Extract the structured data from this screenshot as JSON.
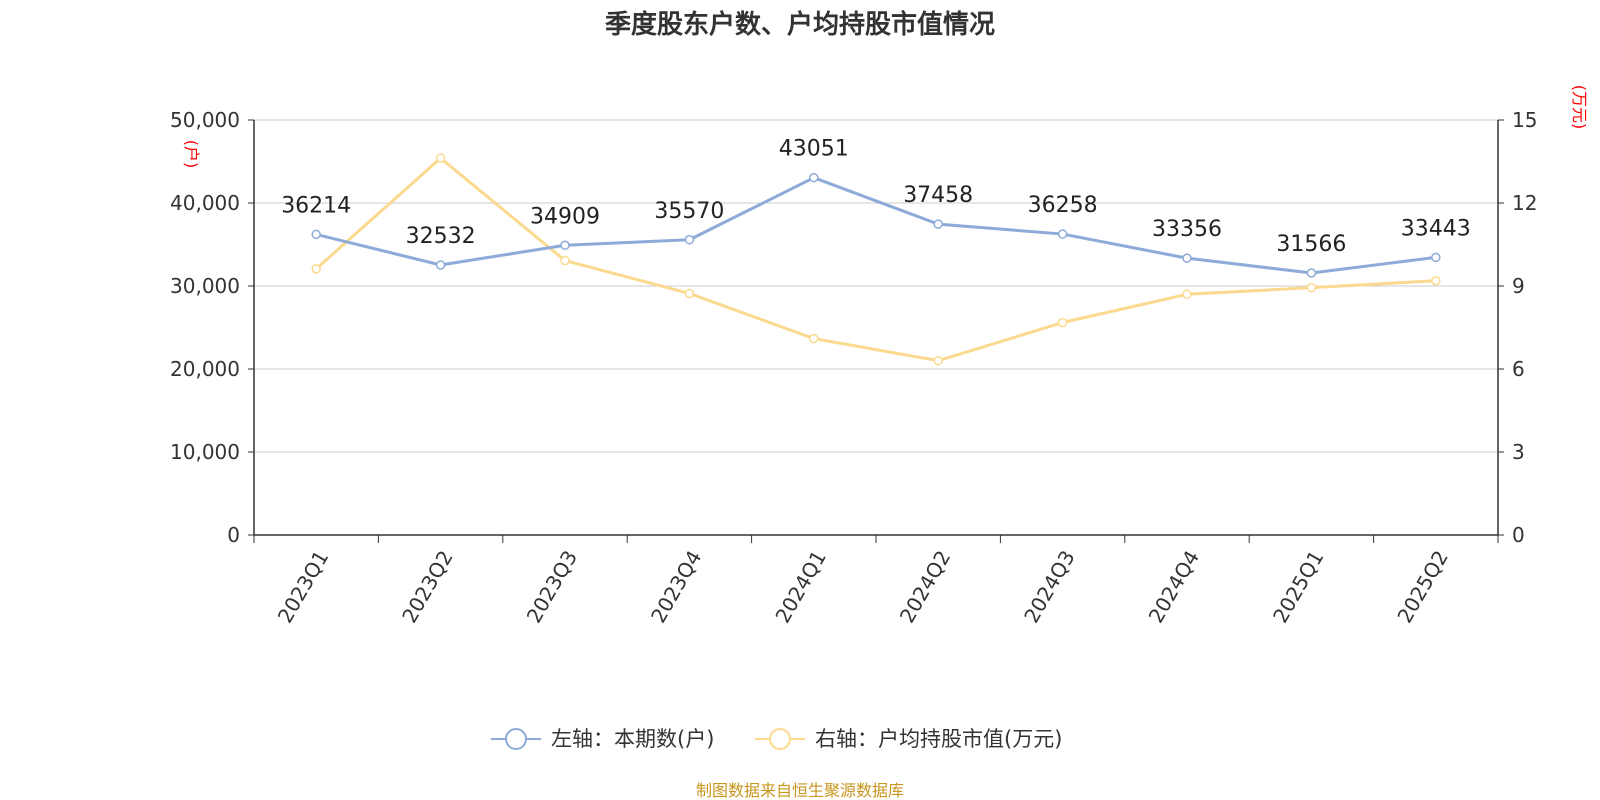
{
  "chart_data": {
    "type": "line",
    "title": "季度股东户数、户均持股市值情况",
    "categories": [
      "2023Q1",
      "2023Q2",
      "2023Q3",
      "2023Q4",
      "2024Q1",
      "2024Q2",
      "2024Q3",
      "2024Q4",
      "2025Q1",
      "2025Q2"
    ],
    "left_axis": {
      "unit": "(户)",
      "ylim": [
        0,
        50000
      ],
      "ticks": [
        0,
        10000,
        20000,
        30000,
        40000,
        50000
      ],
      "tick_labels": [
        "0",
        "10,000",
        "20,000",
        "30,000",
        "40,000",
        "50,000"
      ]
    },
    "right_axis": {
      "unit": "(万元)",
      "ylim": [
        0,
        15
      ],
      "ticks": [
        0,
        3,
        6,
        9,
        12,
        15
      ],
      "tick_labels": [
        "0",
        "3",
        "6",
        "9",
        "12",
        "15"
      ]
    },
    "series": [
      {
        "name": "左轴：本期数(户)",
        "axis": "left",
        "color": "#8eaad8",
        "values": [
          36214,
          32532,
          34909,
          35570,
          43051,
          37458,
          36258,
          33356,
          31566,
          33443
        ],
        "labels": [
          "36214",
          "32532",
          "34909",
          "35570",
          "43051",
          "37458",
          "36258",
          "33356",
          "31566",
          "33443"
        ]
      },
      {
        "name": "右轴：户均持股市值(万元)",
        "axis": "right",
        "color": "#fbd98e",
        "values": [
          9.62,
          13.62,
          9.92,
          8.73,
          7.1,
          6.3,
          7.68,
          8.7,
          8.94,
          9.19
        ]
      }
    ],
    "grid": true,
    "legend_position": "bottom-center",
    "source": "制图数据来自恒生聚源数据库"
  }
}
